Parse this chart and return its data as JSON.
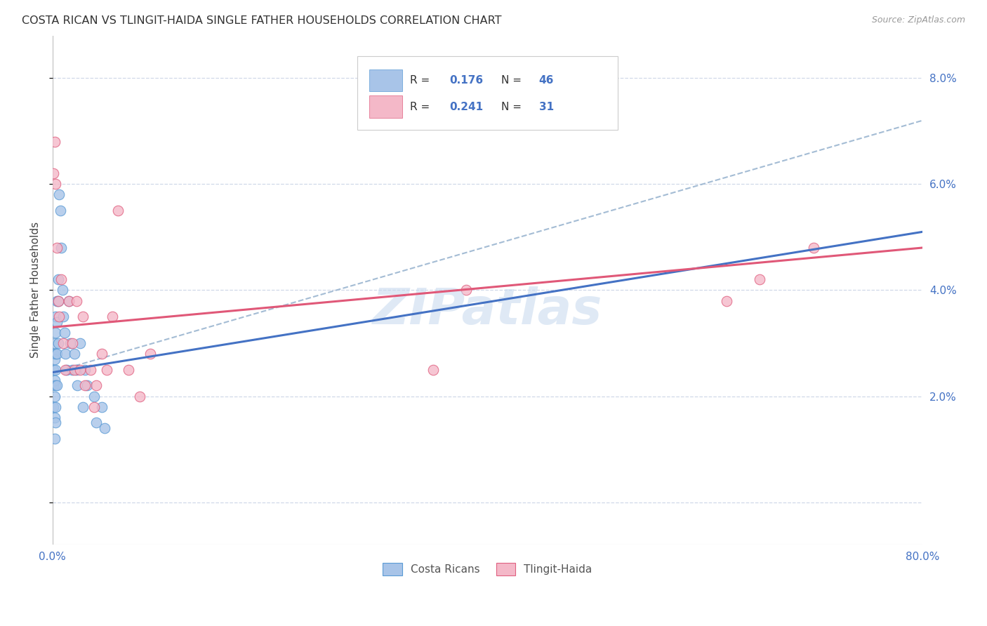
{
  "title": "COSTA RICAN VS TLINGIT-HAIDA SINGLE FATHER HOUSEHOLDS CORRELATION CHART",
  "source": "Source: ZipAtlas.com",
  "ylabel": "Single Father Households",
  "watermark": "ZIPatlas",
  "legend_r_blue": "0.176",
  "legend_n_blue": "46",
  "legend_r_pink": "0.241",
  "legend_n_pink": "31",
  "legend_label_blue": "Costa Ricans",
  "legend_label_pink": "Tlingit-Haida",
  "blue_scatter_color": "#a8c4e8",
  "blue_scatter_edge": "#5b9bd5",
  "pink_scatter_color": "#f4b8c8",
  "pink_scatter_edge": "#e06080",
  "blue_line_color": "#4472c4",
  "pink_line_color": "#e05878",
  "dashed_line_color": "#9ab5d0",
  "tick_color": "#4472c4",
  "grid_color": "#d0d8e8",
  "xlim": [
    0.0,
    0.8
  ],
  "ylim": [
    -0.008,
    0.088
  ],
  "yticks": [
    0.0,
    0.02,
    0.04,
    0.06,
    0.08
  ],
  "ytick_labels": [
    "",
    "2.0%",
    "4.0%",
    "6.0%",
    "8.0%"
  ],
  "xtick_positions": [
    0.0,
    0.8
  ],
  "xtick_labels": [
    "0.0%",
    "80.0%"
  ],
  "blue_line_x0": 0.0,
  "blue_line_y0": 0.0245,
  "blue_line_x1": 0.8,
  "blue_line_y1": 0.051,
  "pink_line_x0": 0.0,
  "pink_line_y0": 0.033,
  "pink_line_x1": 0.8,
  "pink_line_y1": 0.048,
  "dashed_line_x0": 0.0,
  "dashed_line_y0": 0.0245,
  "dashed_line_x1": 0.8,
  "dashed_line_y1": 0.072,
  "costa_rican_x": [
    0.001,
    0.001,
    0.001,
    0.001,
    0.002,
    0.002,
    0.002,
    0.002,
    0.002,
    0.002,
    0.003,
    0.003,
    0.003,
    0.003,
    0.003,
    0.003,
    0.003,
    0.004,
    0.004,
    0.004,
    0.004,
    0.005,
    0.005,
    0.005,
    0.006,
    0.007,
    0.008,
    0.009,
    0.01,
    0.011,
    0.012,
    0.013,
    0.015,
    0.016,
    0.018,
    0.02,
    0.022,
    0.023,
    0.025,
    0.028,
    0.03,
    0.032,
    0.038,
    0.04,
    0.045,
    0.048
  ],
  "costa_rican_y": [
    0.028,
    0.025,
    0.022,
    0.018,
    0.03,
    0.027,
    0.023,
    0.02,
    0.016,
    0.012,
    0.035,
    0.032,
    0.028,
    0.025,
    0.022,
    0.018,
    0.015,
    0.038,
    0.034,
    0.028,
    0.022,
    0.042,
    0.038,
    0.03,
    0.058,
    0.055,
    0.048,
    0.04,
    0.035,
    0.032,
    0.028,
    0.025,
    0.038,
    0.03,
    0.025,
    0.028,
    0.025,
    0.022,
    0.03,
    0.018,
    0.025,
    0.022,
    0.02,
    0.015,
    0.018,
    0.014
  ],
  "tlingit_x": [
    0.001,
    0.002,
    0.003,
    0.004,
    0.005,
    0.006,
    0.008,
    0.01,
    0.012,
    0.015,
    0.018,
    0.02,
    0.022,
    0.025,
    0.028,
    0.03,
    0.035,
    0.038,
    0.04,
    0.045,
    0.05,
    0.055,
    0.06,
    0.07,
    0.08,
    0.09,
    0.35,
    0.38,
    0.62,
    0.65,
    0.7
  ],
  "tlingit_y": [
    0.062,
    0.068,
    0.06,
    0.048,
    0.038,
    0.035,
    0.042,
    0.03,
    0.025,
    0.038,
    0.03,
    0.025,
    0.038,
    0.025,
    0.035,
    0.022,
    0.025,
    0.018,
    0.022,
    0.028,
    0.025,
    0.035,
    0.055,
    0.025,
    0.02,
    0.028,
    0.025,
    0.04,
    0.038,
    0.042,
    0.048
  ]
}
